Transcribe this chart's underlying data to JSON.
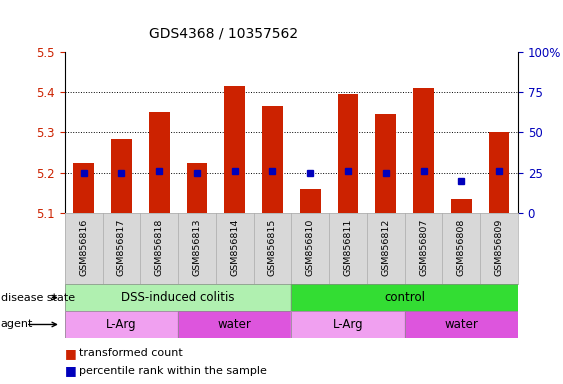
{
  "title": "GDS4368 / 10357562",
  "samples": [
    "GSM856816",
    "GSM856817",
    "GSM856818",
    "GSM856813",
    "GSM856814",
    "GSM856815",
    "GSM856810",
    "GSM856811",
    "GSM856812",
    "GSM856807",
    "GSM856808",
    "GSM856809"
  ],
  "transformed_count": [
    5.225,
    5.285,
    5.35,
    5.225,
    5.415,
    5.365,
    5.16,
    5.395,
    5.345,
    5.41,
    5.135,
    5.3
  ],
  "percentile_rank": [
    25,
    25,
    26,
    25,
    26,
    26,
    25,
    26,
    25,
    26,
    20,
    26
  ],
  "ylim_left": [
    5.1,
    5.5
  ],
  "ylim_right": [
    0,
    100
  ],
  "yticks_left": [
    5.1,
    5.2,
    5.3,
    5.4,
    5.5
  ],
  "yticks_right": [
    0,
    25,
    50,
    75,
    100
  ],
  "ytick_labels_right": [
    "0",
    "25",
    "50",
    "75",
    "100%"
  ],
  "bar_color": "#cc2200",
  "dot_color": "#0000bb",
  "bar_bottom": 5.1,
  "disease_state_groups": [
    {
      "label": "DSS-induced colitis",
      "start": 0,
      "end": 6,
      "color": "#b0f0b0"
    },
    {
      "label": "control",
      "start": 6,
      "end": 12,
      "color": "#33dd33"
    }
  ],
  "agent_groups": [
    {
      "label": "L-Arg",
      "start": 0,
      "end": 3,
      "color": "#f0a0f0"
    },
    {
      "label": "water",
      "start": 3,
      "end": 6,
      "color": "#dd55dd"
    },
    {
      "label": "L-Arg",
      "start": 6,
      "end": 9,
      "color": "#f0a0f0"
    },
    {
      "label": "water",
      "start": 9,
      "end": 12,
      "color": "#dd55dd"
    }
  ],
  "background_color": "#ffffff",
  "tick_label_color_left": "#cc2200",
  "tick_label_color_right": "#0000bb",
  "legend_items": [
    {
      "color": "#cc2200",
      "label": "transformed count"
    },
    {
      "color": "#0000bb",
      "label": "percentile rank within the sample"
    }
  ]
}
